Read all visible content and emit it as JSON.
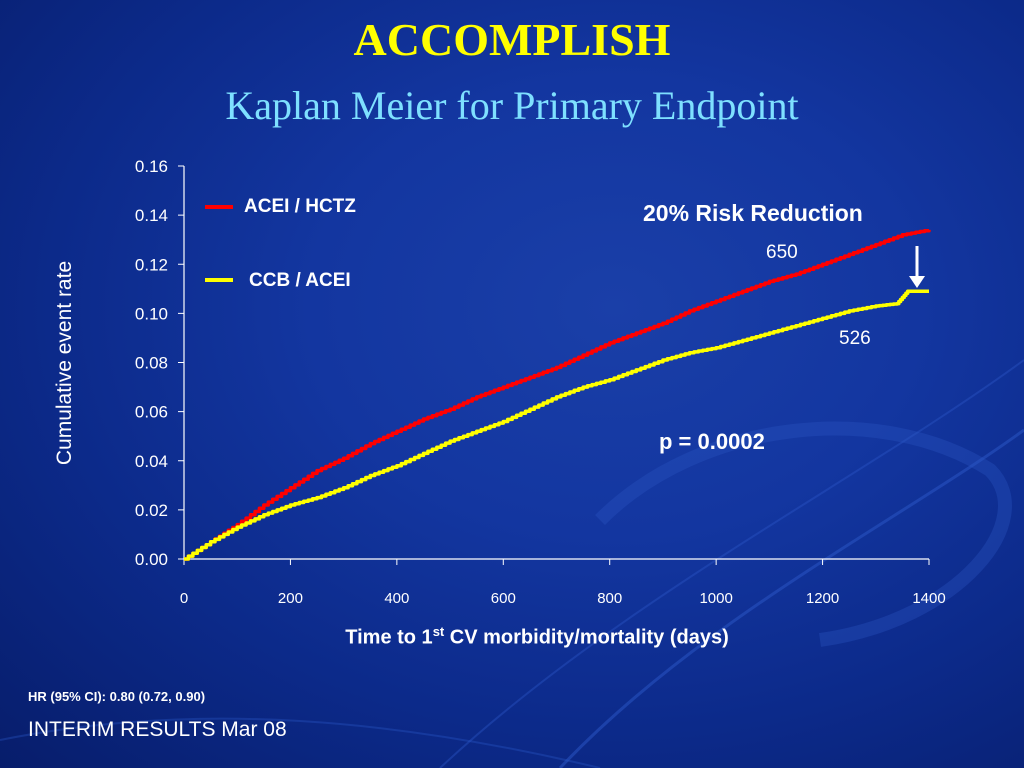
{
  "slide": {
    "title": "ACCOMPLISH",
    "subtitle": "Kaplan Meier for Primary Endpoint",
    "footer_hr": "HR (95% CI): 0.80 (0.72, 0.90)",
    "footer_interim": "INTERIM RESULTS Mar 08"
  },
  "colors": {
    "title": "#ffff00",
    "subtitle": "#7ee0ff",
    "acei_hctz": "#ff0000",
    "ccb_acei": "#ffff00",
    "text": "#ffffff"
  },
  "chart_data": {
    "type": "line",
    "title": "",
    "xlabel_prefix": "Time to 1",
    "xlabel_sup": "st",
    "xlabel_suffix": " CV morbidity/mortality (days)",
    "ylabel": "Cumulative event rate",
    "xlim": [
      0,
      1400
    ],
    "ylim": [
      0,
      0.16
    ],
    "x_ticks": [
      "0",
      "200",
      "400",
      "600",
      "800",
      "1000",
      "1200",
      "1400"
    ],
    "y_ticks": [
      "0.00",
      "0.02",
      "0.04",
      "0.06",
      "0.08",
      "0.10",
      "0.12",
      "0.14",
      "0.16"
    ],
    "x_tick_values": [
      0,
      200,
      400,
      600,
      800,
      1000,
      1200,
      1400
    ],
    "y_tick_values": [
      0,
      0.02,
      0.04,
      0.06,
      0.08,
      0.1,
      0.12,
      0.14,
      0.16
    ],
    "grid": false,
    "legend_position": "top-left",
    "series": [
      {
        "name": "ACEI / HCTZ",
        "color": "#ff0000",
        "x": [
          0,
          50,
          100,
          150,
          200,
          250,
          300,
          350,
          400,
          450,
          500,
          550,
          600,
          650,
          700,
          750,
          800,
          850,
          900,
          950,
          1000,
          1050,
          1100,
          1150,
          1200,
          1250,
          1300,
          1350,
          1400
        ],
        "y": [
          0,
          0.007,
          0.014,
          0.022,
          0.029,
          0.036,
          0.041,
          0.047,
          0.052,
          0.057,
          0.061,
          0.066,
          0.07,
          0.074,
          0.078,
          0.083,
          0.088,
          0.092,
          0.096,
          0.101,
          0.105,
          0.109,
          0.113,
          0.116,
          0.12,
          0.124,
          0.128,
          0.132,
          0.134
        ]
      },
      {
        "name": "CCB / ACEI",
        "color": "#ffff00",
        "x": [
          0,
          50,
          100,
          150,
          200,
          250,
          300,
          350,
          400,
          450,
          500,
          550,
          600,
          650,
          700,
          750,
          800,
          850,
          900,
          950,
          1000,
          1050,
          1100,
          1150,
          1200,
          1250,
          1300,
          1340,
          1360,
          1400
        ],
        "y": [
          0,
          0.007,
          0.013,
          0.018,
          0.022,
          0.025,
          0.029,
          0.034,
          0.038,
          0.043,
          0.048,
          0.052,
          0.056,
          0.061,
          0.066,
          0.07,
          0.073,
          0.077,
          0.081,
          0.084,
          0.086,
          0.089,
          0.092,
          0.095,
          0.098,
          0.101,
          0.103,
          0.104,
          0.109,
          0.109
        ]
      }
    ],
    "annotations": {
      "risk_reduction": "20% Risk Reduction",
      "n_acei_hctz": "650",
      "n_ccb_acei": "526",
      "p_value": "p = 0.0002"
    }
  }
}
